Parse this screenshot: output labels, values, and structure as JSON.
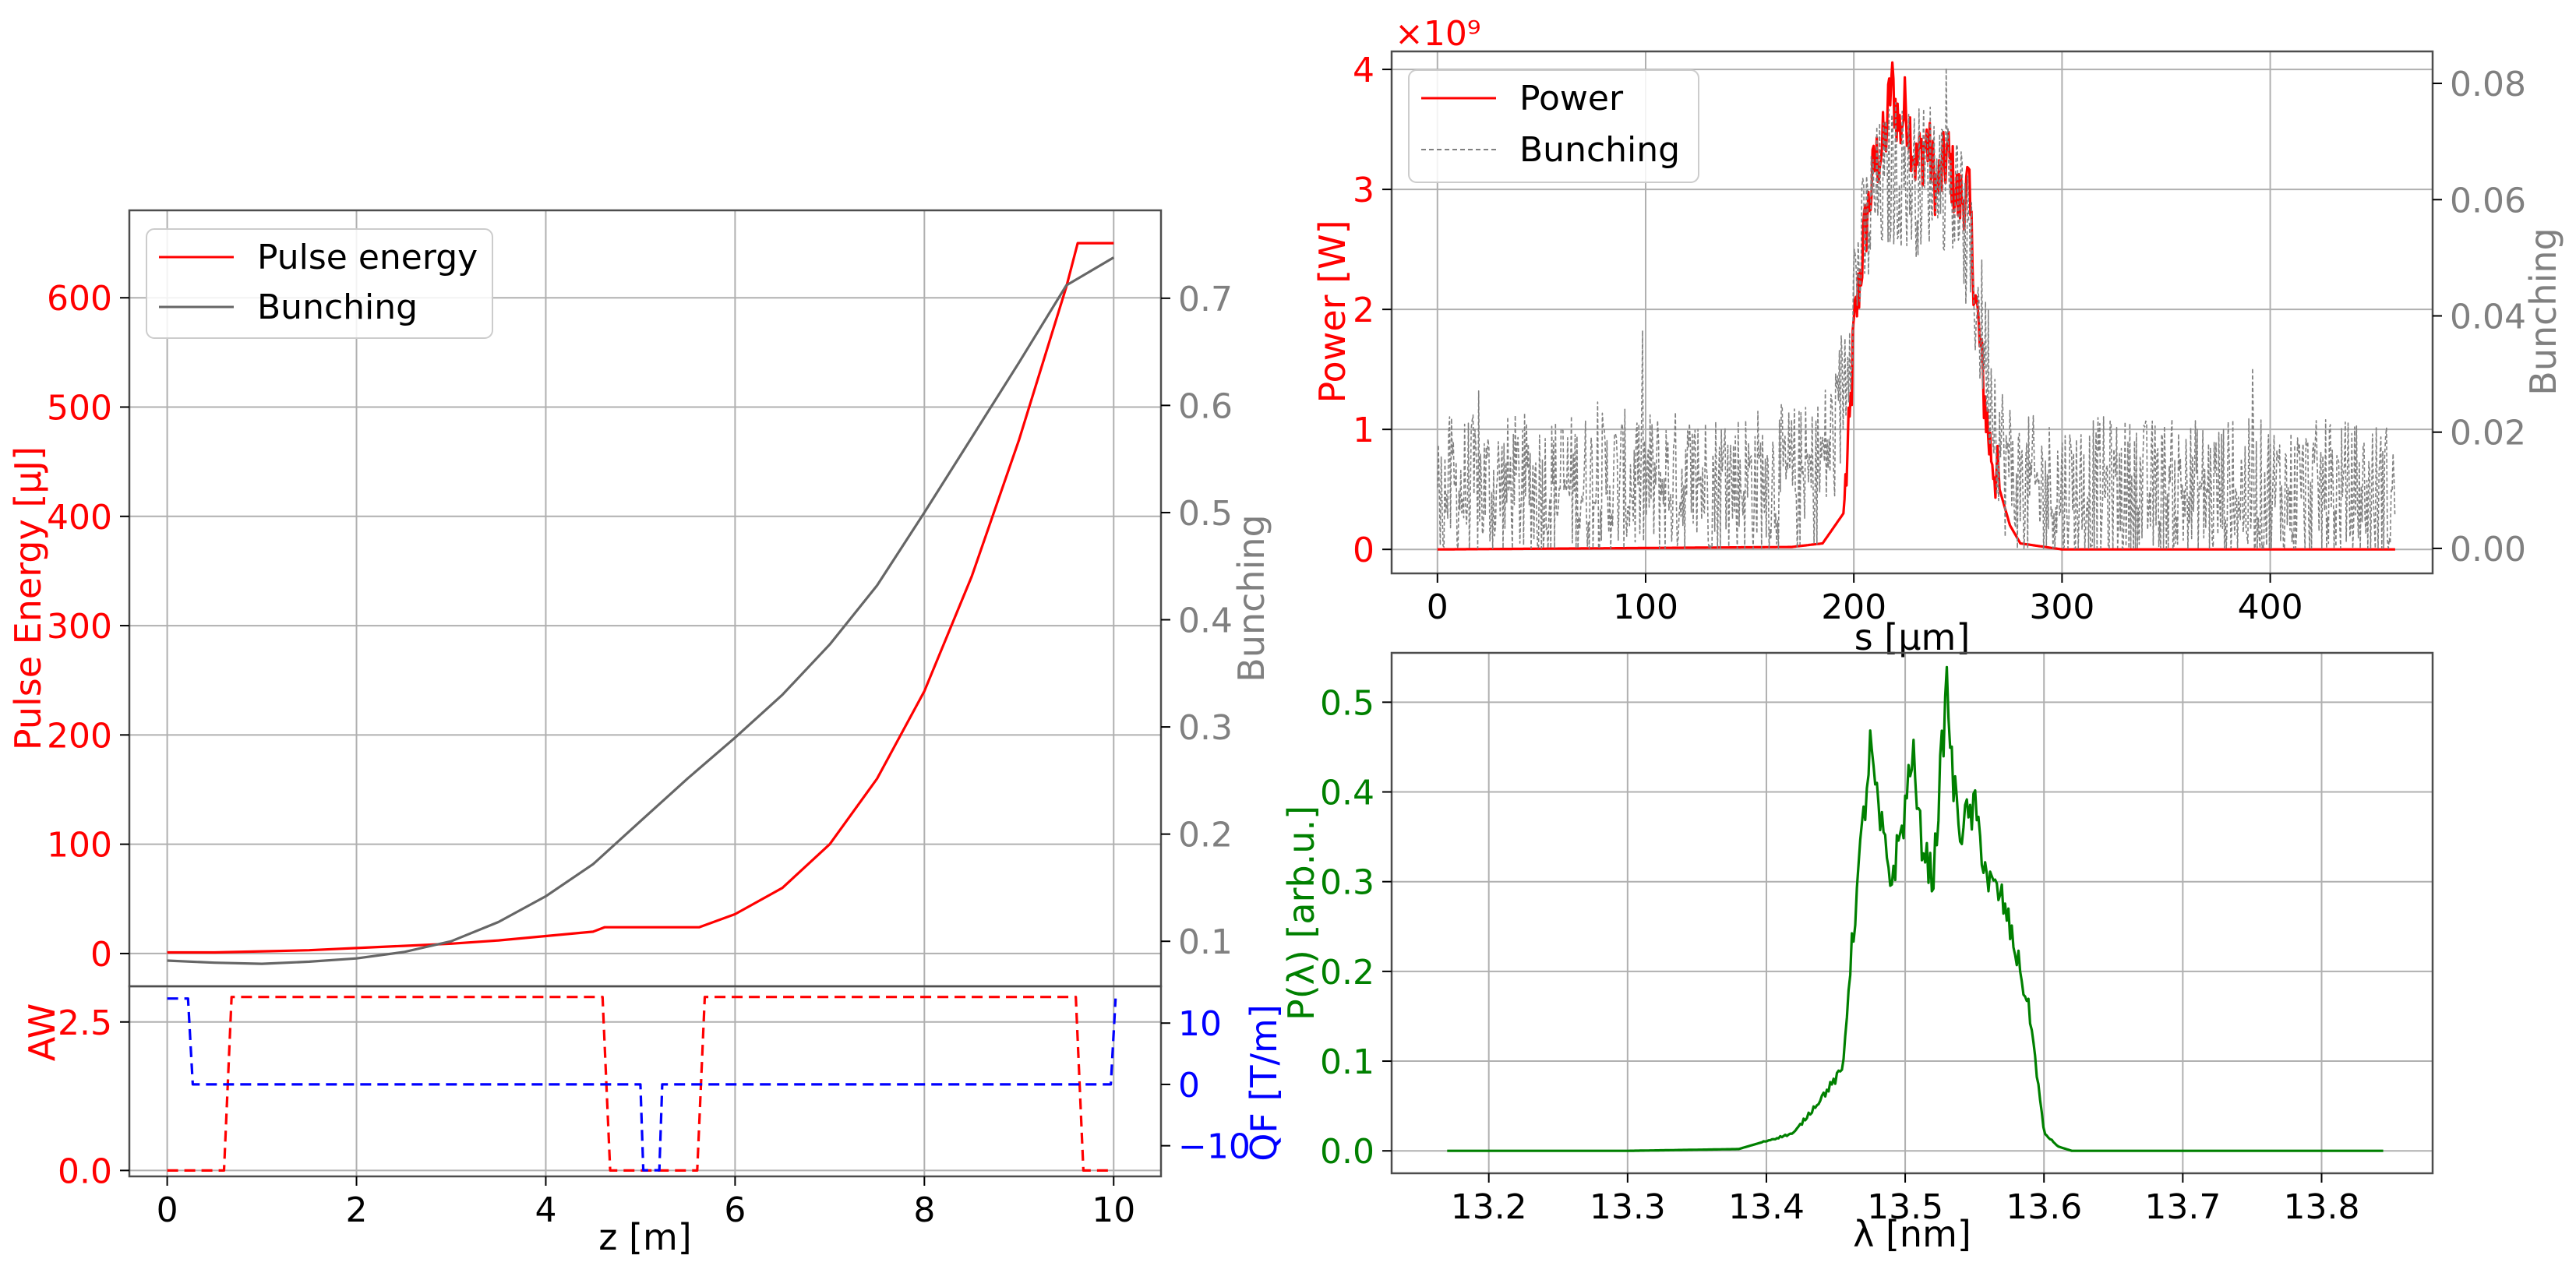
{
  "colors": {
    "red": "#ff0000",
    "gray": "#808080",
    "darkgray": "#666666",
    "blue": "#0000ff",
    "green": "#008000",
    "grid": "#b0b0b0"
  },
  "chart_data": [
    {
      "id": "energy",
      "type": "line",
      "xlabel": "z [m]",
      "ylabel": "Pulse Energy [μJ]",
      "y2label": "Bunching",
      "xlim": [
        -0.4,
        10.5
      ],
      "ylim": [
        -30,
        680
      ],
      "y2lim": [
        0.058,
        0.782
      ],
      "xticks": [
        0,
        2,
        4,
        6,
        8,
        10
      ],
      "yticks": [
        0,
        100,
        200,
        300,
        400,
        500,
        600
      ],
      "y2ticks": [
        0.1,
        0.2,
        0.3,
        0.4,
        0.5,
        0.6,
        0.7
      ],
      "legend": [
        "Pulse energy",
        "Bunching"
      ],
      "legend_loc": "upper-left",
      "series": [
        {
          "name": "Pulse energy",
          "axis": "left",
          "color": "red",
          "x": [
            0,
            0.5,
            1,
            1.5,
            2,
            2.5,
            3,
            3.5,
            4,
            4.5,
            4.62,
            5,
            5.5,
            5.62,
            6,
            6.5,
            7,
            7.5,
            8,
            8.5,
            9,
            9.5,
            9.62,
            10
          ],
          "y": [
            1,
            1,
            2,
            3,
            5,
            7,
            9,
            12,
            16,
            20,
            24,
            24,
            24,
            24,
            36,
            60,
            100,
            160,
            240,
            345,
            470,
            610,
            650,
            650
          ]
        },
        {
          "name": "Bunching",
          "axis": "right",
          "color": "darkgray",
          "x": [
            0,
            0.5,
            1,
            1.5,
            2,
            2.5,
            3,
            3.5,
            4,
            4.5,
            5,
            5.5,
            6,
            6.5,
            7,
            7.5,
            8,
            8.5,
            9,
            9.5,
            10
          ],
          "y": [
            0.082,
            0.08,
            0.079,
            0.081,
            0.084,
            0.09,
            0.1,
            0.118,
            0.142,
            0.172,
            0.212,
            0.252,
            0.29,
            0.33,
            0.377,
            0.432,
            0.5,
            0.57,
            0.64,
            0.712,
            0.738
          ]
        }
      ]
    },
    {
      "id": "lattice",
      "type": "line",
      "xlabel": "z [m]",
      "ylabel": "AW",
      "y2label": "QF [T/m]",
      "xlim": [
        -0.4,
        10.5
      ],
      "ylim": [
        -0.1,
        3.1
      ],
      "y2lim": [
        -15,
        16
      ],
      "xticks": [
        0,
        2,
        4,
        6,
        8,
        10
      ],
      "yticks": [
        0.0,
        2.5
      ],
      "ytick_labels": [
        "0.0",
        "2.5"
      ],
      "y2ticks": [
        -10,
        0,
        10
      ],
      "y2tick_labels": [
        "−10",
        "0",
        "10"
      ],
      "series": [
        {
          "name": "AW",
          "axis": "left",
          "color": "red",
          "dash": true,
          "x": [
            0,
            0.6,
            0.68,
            4.6,
            4.68,
            5.6,
            5.68,
            9.6,
            9.68,
            10
          ],
          "y": [
            0,
            0,
            2.92,
            2.92,
            0,
            0,
            2.92,
            2.92,
            0,
            0
          ]
        },
        {
          "name": "QF",
          "axis": "right",
          "color": "blue",
          "dash": true,
          "x": [
            0,
            0.22,
            0.27,
            5.0,
            5.03,
            5.2,
            5.23,
            9.97,
            10.02
          ],
          "y": [
            14,
            14,
            0,
            0,
            -14,
            -14,
            0,
            0,
            14
          ]
        }
      ]
    },
    {
      "id": "power",
      "type": "line",
      "xlabel": "s [μm]",
      "ylabel": "Power [W]",
      "y2label": "Bunching",
      "offset_text": "×10⁹",
      "xlim": [
        -22,
        478
      ],
      "ylim": [
        -0.2,
        4.15
      ],
      "y2lim": [
        -0.0043,
        0.0855
      ],
      "xticks": [
        0,
        100,
        200,
        300,
        400
      ],
      "yticks": [
        0,
        1,
        2,
        3,
        4
      ],
      "y2ticks": [
        0.0,
        0.02,
        0.04,
        0.06,
        0.08
      ],
      "y2tick_labels": [
        "0.00",
        "0.02",
        "0.04",
        "0.06",
        "0.08"
      ],
      "legend": [
        "Power",
        "Bunching"
      ],
      "legend_loc": "upper-left",
      "series": [
        {
          "name": "Power",
          "axis": "left",
          "color": "red",
          "x": [
            0,
            170,
            185,
            195,
            198,
            200,
            205,
            210,
            215,
            218,
            222,
            225,
            230,
            235,
            240,
            245,
            250,
            255,
            258,
            262,
            265,
            270,
            275,
            280,
            300,
            460
          ],
          "y": [
            0,
            0.02,
            0.05,
            0.3,
            1.0,
            1.8,
            2.6,
            3.2,
            3.4,
            3.9,
            3.5,
            3.7,
            3.2,
            3.4,
            3.0,
            3.3,
            2.9,
            3.0,
            2.2,
            1.4,
            0.9,
            0.5,
            0.2,
            0.05,
            0,
            0
          ]
        },
        {
          "name": "Bunching",
          "axis": "right",
          "color": "gray",
          "dash": true,
          "noise": true,
          "x": [
            0,
            180,
            192,
            200,
            210,
            220,
            230,
            240,
            250,
            258,
            265,
            272,
            280,
            460
          ],
          "y": [
            0.01,
            0.012,
            0.02,
            0.045,
            0.06,
            0.065,
            0.063,
            0.066,
            0.06,
            0.045,
            0.03,
            0.015,
            0.01,
            0.009
          ]
        }
      ]
    },
    {
      "id": "spectrum",
      "type": "line",
      "xlabel": "λ [nm]",
      "ylabel": "P(λ) [arb.u.]",
      "xlim": [
        13.13,
        13.88
      ],
      "ylim": [
        -0.025,
        0.555
      ],
      "xticks": [
        13.2,
        13.3,
        13.4,
        13.5,
        13.6,
        13.7,
        13.8
      ],
      "yticks": [
        0.0,
        0.1,
        0.2,
        0.3,
        0.4,
        0.5
      ],
      "ytick_labels": [
        "0.0",
        "0.1",
        "0.2",
        "0.3",
        "0.4",
        "0.5"
      ],
      "series": [
        {
          "name": "P",
          "axis": "left",
          "color": "green",
          "noise": true,
          "x": [
            13.17,
            13.3,
            13.38,
            13.42,
            13.44,
            13.455,
            13.46,
            13.47,
            13.475,
            13.48,
            13.49,
            13.5,
            13.505,
            13.51,
            13.52,
            13.53,
            13.535,
            13.54,
            13.55,
            13.56,
            13.57,
            13.58,
            13.59,
            13.6,
            13.61,
            13.62,
            13.845
          ],
          "y": [
            0,
            0,
            0.002,
            0.02,
            0.06,
            0.09,
            0.2,
            0.37,
            0.45,
            0.38,
            0.3,
            0.38,
            0.45,
            0.36,
            0.3,
            0.52,
            0.4,
            0.36,
            0.38,
            0.3,
            0.28,
            0.22,
            0.15,
            0.02,
            0.005,
            0,
            0
          ]
        }
      ]
    }
  ]
}
